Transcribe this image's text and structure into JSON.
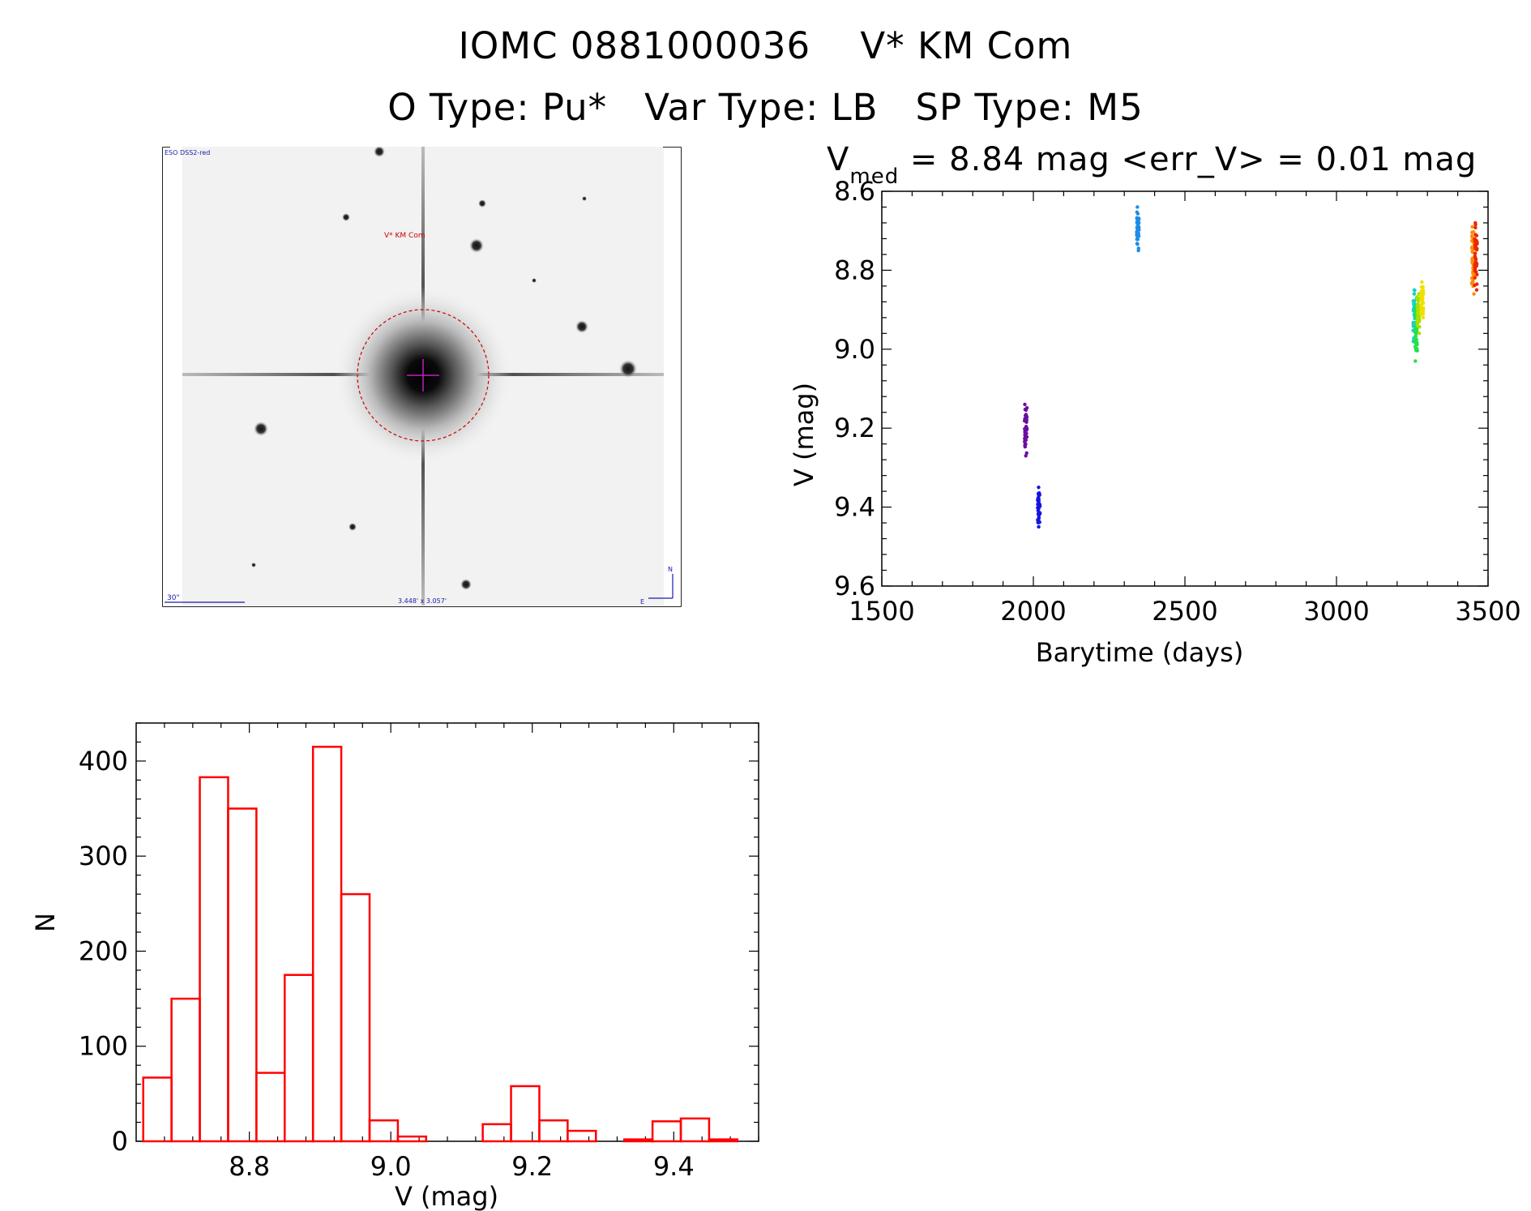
{
  "header": {
    "title": "IOMC 0881000036    V* KM Com",
    "subtitle": "O Type: Pu*   Var Type: LB   SP Type: M5"
  },
  "finder": {
    "survey_label": "ESO DSS2-red",
    "target_label": "V* KM Com",
    "scale_label": "30\"",
    "fov_label": "3.448' x 3.057'",
    "north_label": "N",
    "east_label": "E",
    "target_color": "#cc0000",
    "label_color": "#1a1aa8"
  },
  "lightcurve": {
    "title_prefix": "V",
    "title_sub": "med",
    "title_rest": " = 8.84 mag <err_V> = 0.01 mag",
    "xlabel": "Barytime (days)",
    "ylabel": "V (mag)",
    "xlim": [
      1500,
      3500
    ],
    "ylim": [
      9.6,
      8.6
    ],
    "xticks": [
      1500,
      2000,
      2500,
      3000,
      3500
    ],
    "yticks": [
      8.6,
      8.8,
      9.0,
      9.2,
      9.4,
      9.6
    ],
    "groups": [
      {
        "x": 1975,
        "ymin": 9.14,
        "ymax": 9.27,
        "color": "#6a0fa0"
      },
      {
        "x": 2018,
        "ymin": 9.35,
        "ymax": 9.45,
        "color": "#1515e0"
      },
      {
        "x": 2345,
        "ymin": 8.64,
        "ymax": 8.75,
        "color": "#1e8ce6"
      },
      {
        "x": 3257,
        "ymin": 8.85,
        "ymax": 8.98,
        "color": "#10d4c8"
      },
      {
        "x": 3263,
        "ymin": 8.87,
        "ymax": 9.03,
        "color": "#27e04a"
      },
      {
        "x": 3270,
        "ymin": 8.86,
        "ymax": 8.96,
        "color": "#a8e000"
      },
      {
        "x": 3283,
        "ymin": 8.83,
        "ymax": 8.92,
        "color": "#f0e000"
      },
      {
        "x": 3450,
        "ymin": 8.69,
        "ymax": 8.86,
        "color": "#ff8c00"
      },
      {
        "x": 3460,
        "ymin": 8.68,
        "ymax": 8.85,
        "color": "#e82a00"
      }
    ]
  },
  "chart_data": {
    "type": "bar",
    "xlabel": "V (mag)",
    "ylabel": "N",
    "xlim": [
      8.64,
      9.52
    ],
    "ylim": [
      0,
      440
    ],
    "xticks": [
      8.8,
      9.0,
      9.2,
      9.4
    ],
    "yticks": [
      0,
      100,
      200,
      300,
      400
    ],
    "bin_start": 8.65,
    "bin_width": 0.04,
    "values": [
      67,
      150,
      383,
      350,
      72,
      175,
      415,
      260,
      22,
      5,
      0,
      0,
      18,
      58,
      22,
      11,
      0,
      2,
      21,
      24,
      2
    ],
    "color": "#ff0000"
  }
}
